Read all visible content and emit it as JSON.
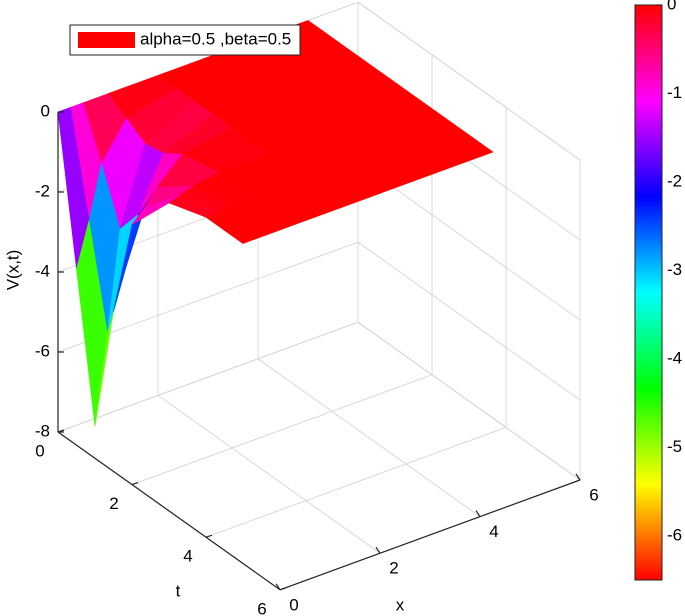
{
  "chart_data": {
    "type": "surface",
    "xlabel": "x",
    "ylabel": "t",
    "zlabel": "V(x,t)",
    "xlim": [
      0,
      6
    ],
    "ylim": [
      0,
      6
    ],
    "zlim": [
      -8,
      0
    ],
    "xticks": [
      0,
      2,
      4,
      6
    ],
    "yticks": [
      0,
      2,
      4,
      6
    ],
    "zticks": [
      0,
      -2,
      -4,
      -6,
      -8
    ],
    "grid": true,
    "colormap": "hsv",
    "clim": [
      -6.5,
      0
    ],
    "cticks": [
      0,
      -1,
      -2,
      -3,
      -4,
      -5,
      -6
    ],
    "x": [
      0,
      0.25,
      0.5,
      1,
      2,
      3,
      4,
      5
    ],
    "y": [
      0,
      0.5,
      1,
      1.5,
      2,
      3,
      4,
      5
    ],
    "series": [
      {
        "name": "alpha=0.5 ,beta=0.5",
        "color": "#ff0000",
        "z": [
          [
            0,
            0,
            0,
            0,
            0,
            0,
            0,
            0
          ],
          [
            -3.6,
            -2.5,
            -1.2,
            -0.3,
            0,
            0,
            0,
            0
          ],
          [
            -7.2,
            -5,
            -2.5,
            -0.6,
            0,
            0,
            0,
            0
          ],
          [
            -4,
            -3,
            -1.8,
            -0.5,
            0,
            0,
            0,
            0
          ],
          [
            -1.5,
            -1.2,
            -0.8,
            -0.2,
            0,
            0,
            0,
            0
          ],
          [
            -0.3,
            -0.2,
            -0.1,
            0,
            0,
            0,
            0,
            0
          ],
          [
            0,
            0,
            0,
            0,
            0,
            0,
            0,
            0
          ],
          [
            0,
            0,
            0,
            0,
            0,
            0,
            0,
            0
          ]
        ]
      }
    ],
    "legend": "upper left"
  }
}
